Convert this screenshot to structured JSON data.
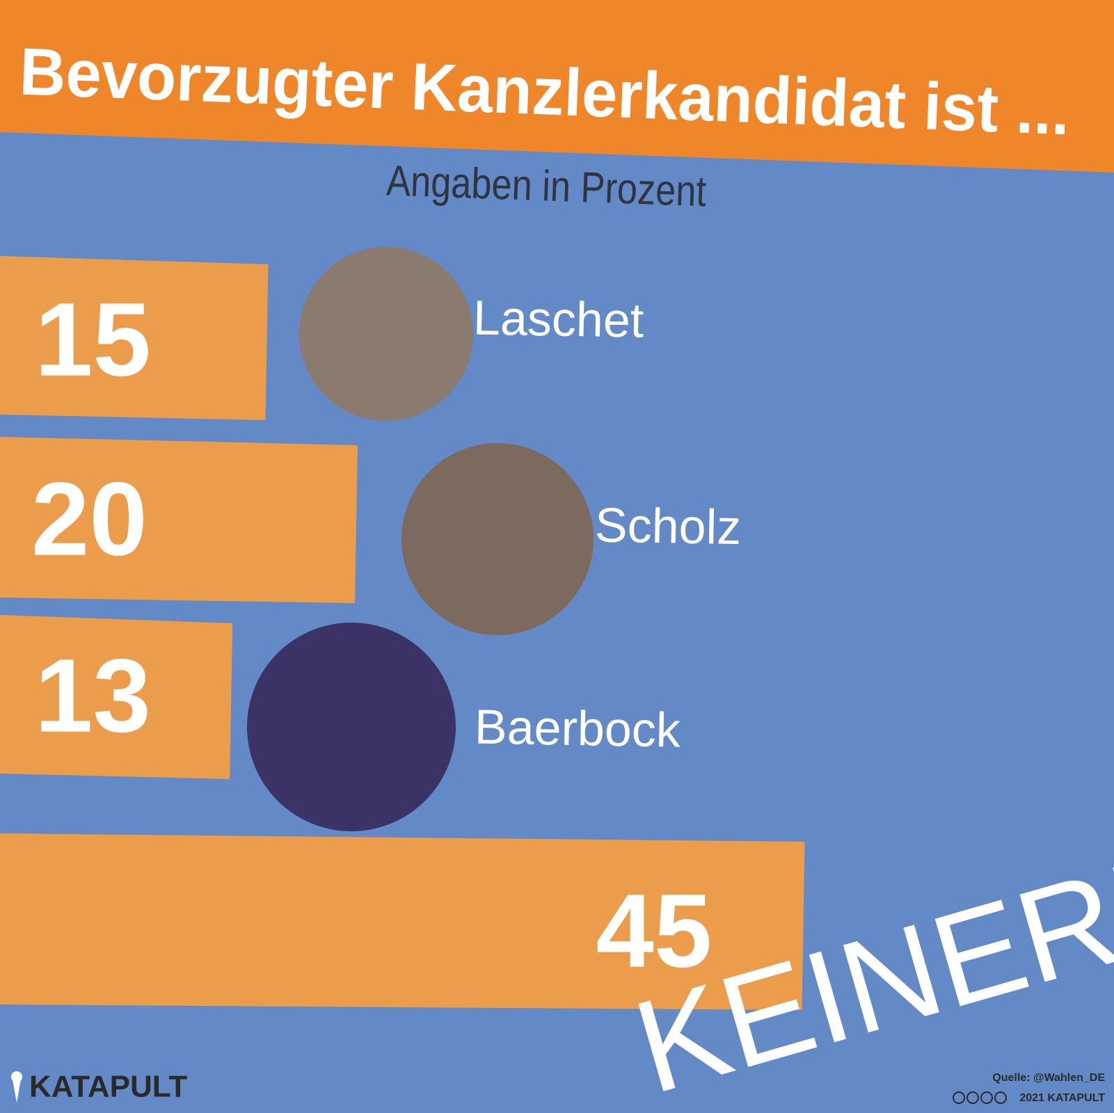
{
  "chart_data": {
    "type": "bar",
    "title": "Bevorzugter Kanzlerkandidat ist ...",
    "subtitle": "Angaben in Prozent",
    "categories": [
      "Laschet",
      "Scholz",
      "Baerbock",
      "KEINER!"
    ],
    "values": [
      15,
      20,
      13,
      45
    ],
    "color": "#eb9d4b",
    "background": "#6389c6",
    "brand": "KATAPULT",
    "source": "Quelle: @Wahlen_DE",
    "credit": "2021 KATAPULT"
  }
}
